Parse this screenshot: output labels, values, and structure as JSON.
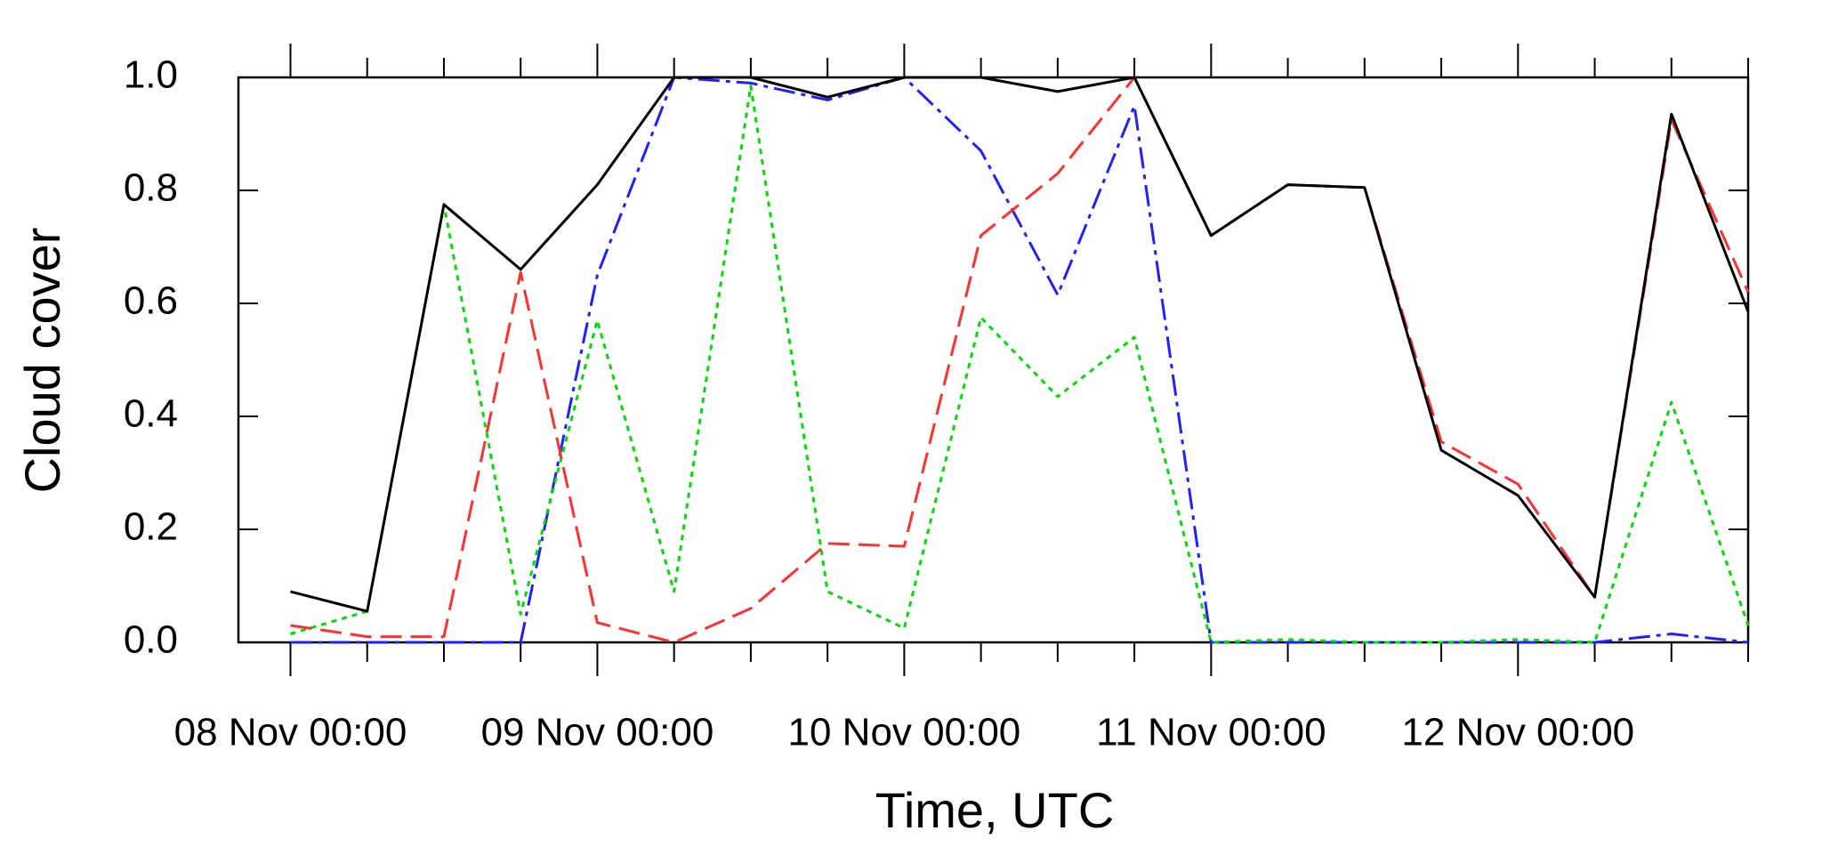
{
  "chart_data": {
    "type": "line",
    "y_label": "Cloud cover",
    "x_label": "Time, UTC",
    "categories": [
      "08 Nov 00:00",
      null,
      null,
      null,
      "09 Nov 00:00",
      null,
      null,
      null,
      "10 Nov 00:00",
      null,
      null,
      null,
      "11 Nov 00:00",
      null,
      null,
      null,
      "12 Nov 00:00",
      null,
      null,
      null
    ],
    "series": [
      {
        "color": "#000000",
        "dash": "none",
        "values": [
          0.09,
          0.055,
          0.775,
          0.66,
          0.81,
          1.0,
          1.0,
          0.965,
          1.0,
          1.0,
          0.975,
          1.0,
          0.72,
          0.81,
          0.805,
          0.34,
          0.26,
          0.08,
          0.935,
          0.585
        ]
      },
      {
        "color": "#ff3030",
        "dash": "24,10",
        "values": [
          0.03,
          0.01,
          0.01,
          0.655,
          0.035,
          0.0,
          0.06,
          0.175,
          0.17,
          0.72,
          0.83,
          1.0,
          0.72,
          0.81,
          0.805,
          0.355,
          0.28,
          0.08,
          0.925,
          0.62
        ]
      },
      {
        "color": "#00dd00",
        "dash": "6,6",
        "values": [
          0.015,
          0.055,
          0.775,
          0.05,
          0.57,
          0.09,
          0.985,
          0.09,
          0.025,
          0.575,
          0.435,
          0.54,
          0.0,
          0.005,
          0.0,
          0.0,
          0.005,
          0.0,
          0.425,
          0.03
        ]
      },
      {
        "color": "#2020ff",
        "dash": "24,7,5,7",
        "values": [
          0.0,
          0.0,
          0.0,
          0.0,
          0.65,
          1.0,
          0.99,
          0.96,
          1.0,
          0.87,
          0.615,
          0.95,
          0.0,
          0.0,
          0.0,
          0.0,
          0.0,
          0.0,
          0.015,
          0.0
        ]
      }
    ],
    "ylim": [
      0,
      1
    ],
    "yticks": [
      {
        "value": 0,
        "label": "0.0"
      },
      0.2,
      0.4,
      0.6,
      0.8,
      {
        "value": 1,
        "label": "1.0"
      }
    ],
    "grid": false
  }
}
